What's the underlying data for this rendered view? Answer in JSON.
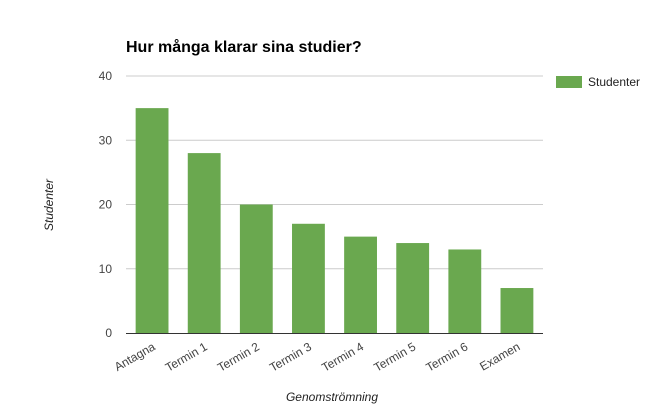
{
  "chart_data": {
    "type": "bar",
    "title": "Hur många klarar sina studier?",
    "xlabel": "Genomströmning",
    "ylabel": "Studenter",
    "categories": [
      "Antagna",
      "Termin 1",
      "Termin 2",
      "Termin 3",
      "Termin 4",
      "Termin 5",
      "Termin 6",
      "Examen"
    ],
    "series": [
      {
        "name": "Studenter",
        "values": [
          35,
          28,
          20,
          17,
          15,
          14,
          13,
          7
        ],
        "color": "#6aa84f"
      }
    ],
    "ylim": [
      0,
      40
    ],
    "yticks": [
      "0",
      "10",
      "20",
      "30",
      "40"
    ],
    "grid": true,
    "legend": "right"
  }
}
